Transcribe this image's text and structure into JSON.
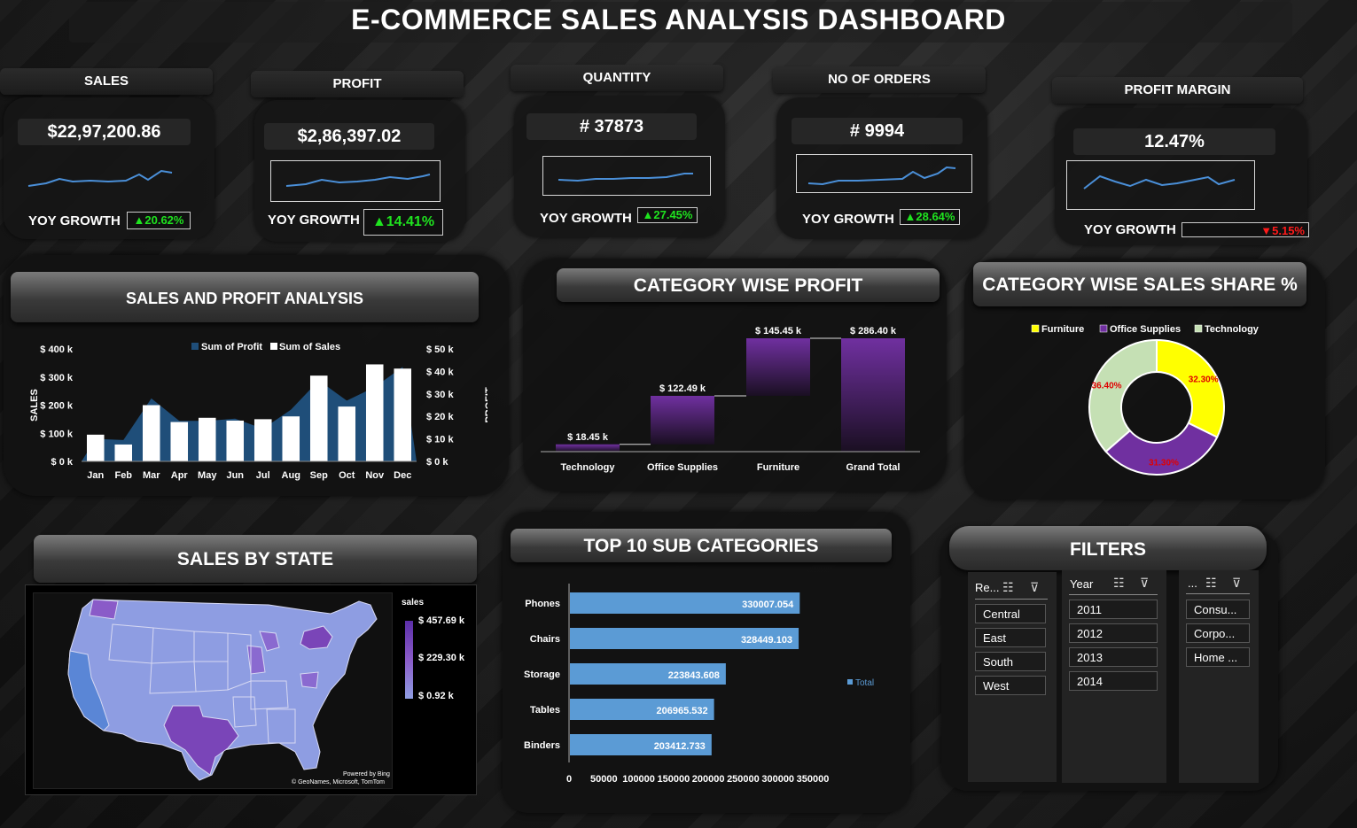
{
  "title": "E-COMMERCE SALES ANALYSIS DASHBOARD",
  "kpis": {
    "sales": {
      "label": "SALES",
      "value": "$22,97,200.86",
      "yoy_label": "YOY GROWTH",
      "yoy": "▲20.62%"
    },
    "profit": {
      "label": "PROFIT",
      "value": "$2,86,397.02",
      "yoy_label": "YOY GROWTH",
      "yoy": "▲14.41%"
    },
    "quantity": {
      "label": "QUANTITY",
      "value": "# 37873",
      "yoy_label": "YOY GROWTH",
      "yoy": "▲27.45%"
    },
    "orders": {
      "label": "NO OF ORDERS",
      "value": "# 9994",
      "yoy_label": "YOY GROWTH",
      "yoy": "▲28.64%"
    },
    "margin": {
      "label": "PROFIT MARGIN",
      "value": "12.47%",
      "yoy_label": "YOY GROWTH",
      "yoy": "▼5.15%"
    }
  },
  "panels": {
    "sales_profit": "SALES AND PROFIT ANALYSIS",
    "category_profit": "CATEGORY WISE PROFIT",
    "category_share": "CATEGORY WISE SALES SHARE %",
    "sales_state": "SALES BY STATE",
    "top10": "TOP 10 SUB CATEGORIES",
    "filters": "FILTERS"
  },
  "colors": {
    "profit_area": "#1f4e79",
    "sales_bar": "#ffffff",
    "waterfall": "#7030a0",
    "top10_bar": "#5b9bd5",
    "green": "#1fe31f",
    "red": "#ff1a1a",
    "furniture": "#ffff00",
    "office": "#7030a0",
    "technology": "#c5e0b4"
  },
  "chart_data": [
    {
      "type": "bar",
      "title": "SALES AND PROFIT ANALYSIS",
      "categories": [
        "Jan",
        "Feb",
        "Mar",
        "Apr",
        "May",
        "Jun",
        "Jul",
        "Aug",
        "Sep",
        "Oct",
        "Nov",
        "Dec"
      ],
      "series": [
        {
          "name": "Sum of Sales",
          "type": "bar",
          "values": [
            95000,
            60000,
            200000,
            140000,
            155000,
            145000,
            150000,
            160000,
            305000,
            195000,
            345000,
            330000
          ]
        },
        {
          "name": "Sum of Profit",
          "type": "area",
          "values": [
            10000,
            9500,
            28000,
            18000,
            18000,
            19000,
            14500,
            23000,
            36000,
            27000,
            33000,
            42000
          ]
        }
      ],
      "ylabel": "SALES",
      "y2label": "PROFIT",
      "y_ticks": [
        "$ 0 k",
        "$ 100 k",
        "$ 200 k",
        "$ 300 k",
        "$ 400 k"
      ],
      "y2_ticks": [
        "$ 0 k",
        "$ 10 k",
        "$ 20 k",
        "$ 30 k",
        "$ 40 k",
        "$ 50 k"
      ],
      "ylim": [
        0,
        400000
      ],
      "y2lim": [
        0,
        50000
      ]
    },
    {
      "type": "bar",
      "title": "CATEGORY WISE PROFIT",
      "categories": [
        "Technology",
        "Office Supplies",
        "Furniture",
        "Grand Total"
      ],
      "values": [
        18.45,
        122.49,
        145.45,
        286.4
      ],
      "labels": [
        "$ 18.45 k",
        "$ 122.49 k",
        "$ 145.45 k",
        "$ 286.40 k"
      ]
    },
    {
      "type": "pie",
      "title": "CATEGORY WISE SALES SHARE %",
      "categories": [
        "Furniture",
        "Office Supplies",
        "Technology"
      ],
      "values": [
        32.3,
        31.3,
        36.4
      ],
      "labels": [
        "32.30%",
        "31.30%",
        "36.40%"
      ]
    },
    {
      "type": "bar",
      "title": "TOP 10 SUB CATEGORIES",
      "categories": [
        "Phones",
        "Chairs",
        "Storage",
        "Tables",
        "Binders"
      ],
      "values": [
        330007.054,
        328449.103,
        223843.608,
        206965.532,
        203412.733
      ],
      "labels": [
        "330007.054",
        "328449.103",
        "223843.608",
        "206965.532",
        "203412.733"
      ],
      "x_ticks": [
        "0",
        "50000",
        "100000",
        "150000",
        "200000",
        "250000",
        "300000",
        "350000"
      ],
      "xlim": [
        0,
        350000
      ],
      "legend": "Total"
    }
  ],
  "map": {
    "legend_title": "sales",
    "legend_values": [
      "$ 457.69 k",
      "$ 229.30 k",
      "$ 0.92 k"
    ],
    "credit1": "Powered by Bing",
    "credit2": "© GeoNames, Microsoft, TomTom"
  },
  "filters": {
    "region": {
      "header": "Re...",
      "items": [
        "Central",
        "East",
        "South",
        "West"
      ]
    },
    "year": {
      "header": "Year",
      "items": [
        "2011",
        "2012",
        "2013",
        "2014"
      ]
    },
    "segment": {
      "header": "...",
      "items": [
        "Consu...",
        "Corpo...",
        "Home ..."
      ]
    }
  }
}
